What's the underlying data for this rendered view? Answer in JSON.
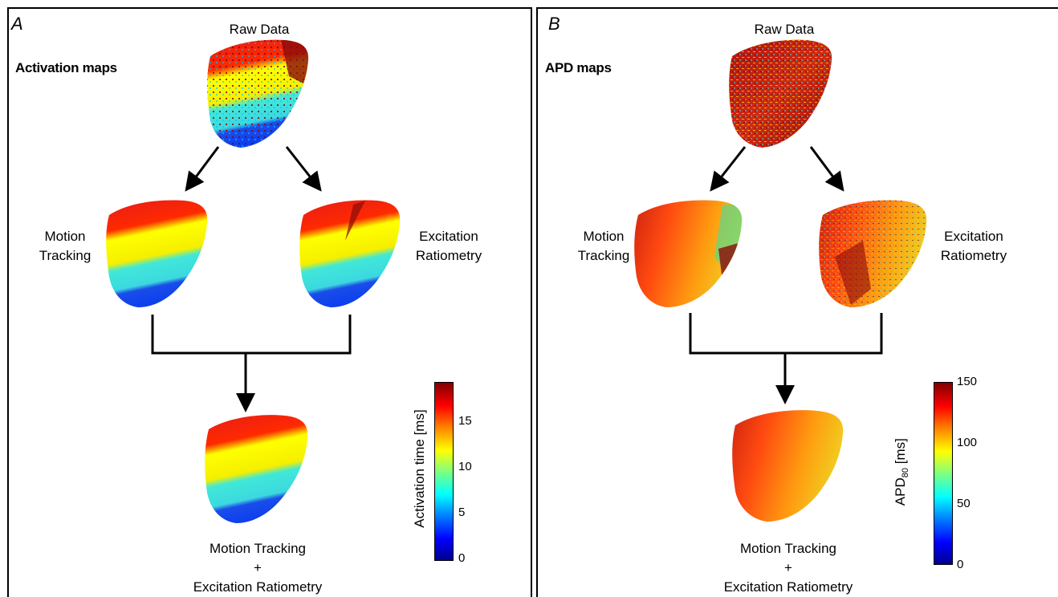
{
  "panels": [
    {
      "letter": "A",
      "title": "Activation maps",
      "raw_label": "Raw Data",
      "left_label": [
        "Motion",
        "Tracking"
      ],
      "right_label": [
        "Excitation",
        "Ratiometry"
      ],
      "combined_label": [
        "Motion Tracking",
        "+",
        "Excitation Ratiometry"
      ],
      "colorbar": {
        "title": "Activation time [ms]",
        "ticks": [
          "15",
          "10",
          "5",
          "0"
        ],
        "range": [
          0,
          19
        ]
      }
    },
    {
      "letter": "B",
      "title": "APD maps",
      "raw_label": "Raw Data",
      "left_label": [
        "Motion",
        "Tracking"
      ],
      "right_label": [
        "Excitation",
        "Ratiometry"
      ],
      "combined_label": [
        "Motion Tracking",
        "+",
        "Excitation Ratiometry"
      ],
      "colorbar": {
        "title_main": "APD",
        "title_sub": "80",
        "title_unit": " [ms]",
        "ticks": [
          "150",
          "100",
          "50",
          "0"
        ],
        "range": [
          0,
          150
        ]
      }
    }
  ],
  "colors": {
    "jet": [
      "#00008f",
      "#0000ff",
      "#0080ff",
      "#00ffff",
      "#80ff80",
      "#ffff00",
      "#ff8000",
      "#ff0000",
      "#800000"
    ]
  }
}
